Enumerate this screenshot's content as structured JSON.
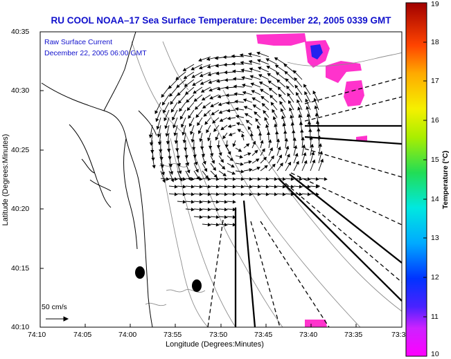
{
  "title": "RU COOL  NOAA–17  Sea Surface Temperature:  December 22, 2005 0339 GMT",
  "legend": {
    "line1": "Raw Surface Current",
    "line2": "December 22, 2005 06:00 GMT"
  },
  "scale": {
    "label": "50 cm/s"
  },
  "x_axis": {
    "label": "Longitude (Degrees:Minutes)",
    "ticks": [
      "74:10",
      "74:05",
      "74:00",
      "73:55",
      "73:50",
      "73:45",
      "73:40",
      "73:35",
      "73:3"
    ]
  },
  "y_axis": {
    "label": "Latitude (Degrees:Minutes)",
    "ticks": [
      "40:35",
      "40:30",
      "40:25",
      "40:20",
      "40:15",
      "40:10"
    ]
  },
  "colorbar": {
    "label": "Temperature (°C)",
    "ticks": [
      "19",
      "18",
      "17",
      "16",
      "15",
      "14",
      "13",
      "12",
      "11",
      "10"
    ],
    "min": 10,
    "max": 19
  },
  "colors": {
    "title": "#1010cc",
    "coast": "#000000",
    "bathymetry": "#888888",
    "sst_patch": "#ff33cc",
    "cold_core": "#2222ee",
    "vectors": "#000000"
  }
}
